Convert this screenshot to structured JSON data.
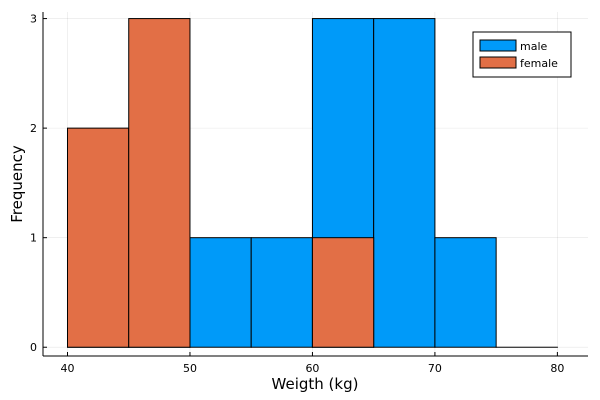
{
  "chart_data": {
    "type": "bar",
    "title": "",
    "xlabel": "Weigth (kg)",
    "ylabel": "Frequency",
    "xlim": [
      38,
      82.5
    ],
    "ylim": [
      -0.08,
      3.06
    ],
    "xticks": [
      40,
      50,
      60,
      70,
      80
    ],
    "yticks": [
      0,
      1,
      2,
      3
    ],
    "grid": true,
    "legend_position": "top-right",
    "bin_width": 5,
    "series": [
      {
        "name": "male",
        "color": "#009af9",
        "bins": [
          {
            "x0": 40,
            "x1": 45,
            "count": 0
          },
          {
            "x0": 45,
            "x1": 50,
            "count": 0
          },
          {
            "x0": 50,
            "x1": 55,
            "count": 1
          },
          {
            "x0": 55,
            "x1": 60,
            "count": 1
          },
          {
            "x0": 60,
            "x1": 65,
            "count": 3
          },
          {
            "x0": 65,
            "x1": 70,
            "count": 3
          },
          {
            "x0": 70,
            "x1": 75,
            "count": 1
          },
          {
            "x0": 75,
            "x1": 80,
            "count": 0
          }
        ]
      },
      {
        "name": "female",
        "color": "#e26f46",
        "bins": [
          {
            "x0": 40,
            "x1": 45,
            "count": 2
          },
          {
            "x0": 45,
            "x1": 50,
            "count": 3
          },
          {
            "x0": 60,
            "x1": 65,
            "count": 1
          }
        ]
      }
    ]
  }
}
